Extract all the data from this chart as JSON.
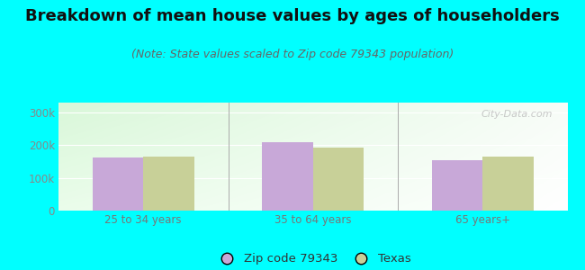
{
  "title": "Breakdown of mean house values by ages of householders",
  "subtitle": "(Note: State values scaled to Zip code 79343 population)",
  "categories": [
    "25 to 34 years",
    "35 to 64 years",
    "65 years+"
  ],
  "zip_values": [
    163000,
    210000,
    154000
  ],
  "texas_values": [
    166000,
    192000,
    165000
  ],
  "ylim": [
    0,
    330000
  ],
  "ytick_labels": [
    "0",
    "100k",
    "200k",
    "300k"
  ],
  "zip_color": "#c8a8d8",
  "texas_color": "#c8d098",
  "background_color": "#00ffff",
  "bar_width": 0.3,
  "legend_zip_label": "Zip code 79343",
  "legend_texas_label": "Texas",
  "watermark": "City-Data.com",
  "title_fontsize": 13,
  "subtitle_fontsize": 9,
  "tick_fontsize": 8.5,
  "legend_fontsize": 9.5
}
